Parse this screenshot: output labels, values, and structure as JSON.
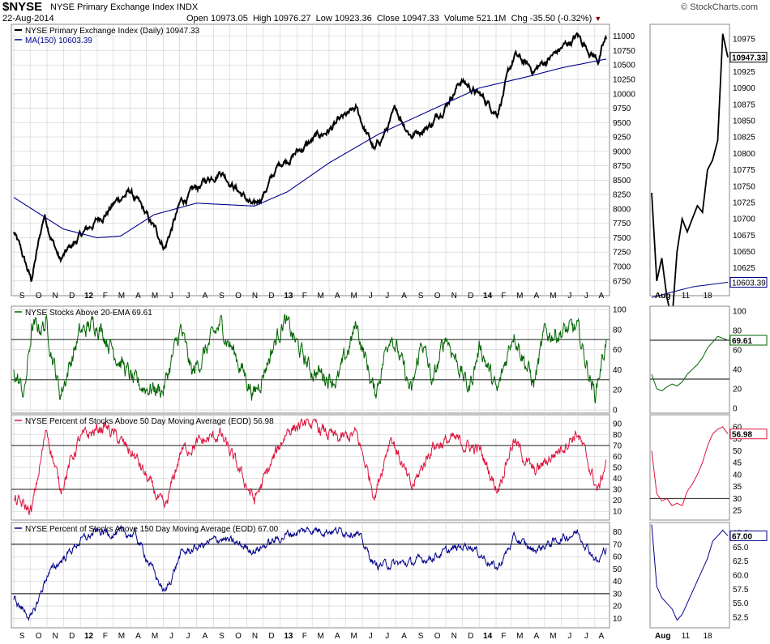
{
  "header": {
    "symbol": "$NYSE",
    "name": "NYSE Primary Exchange Index  INDX",
    "date": "22-Aug-2014",
    "ohlc": "Open 10973.05  High 10976.27  Low 10923.36  Close 10947.33  Volume 521.1M  Chg -35.50 (-0.32%)",
    "chg_arrow": "▼",
    "brand": "© StockCharts.com"
  },
  "colors": {
    "price": "#000000",
    "ma": "#00008b",
    "ema20": "#006400",
    "pct50": "#dc143c",
    "pct150": "#00008b",
    "grid": "#d3d3d3",
    "border": "#888888"
  },
  "x_labels": [
    "S",
    "O",
    "N",
    "D",
    "12",
    "F",
    "M",
    "A",
    "M",
    "J",
    "J",
    "A",
    "S",
    "O",
    "N",
    "D",
    "13",
    "F",
    "M",
    "A",
    "M",
    "J",
    "J",
    "A",
    "S",
    "O",
    "N",
    "D",
    "14",
    "F",
    "M",
    "A",
    "M",
    "J",
    "J",
    "A"
  ],
  "zoom_labels": [
    "Aug",
    "11",
    "18"
  ],
  "chart_data": [
    {
      "type": "line",
      "title": "NYSE Primary Exchange Index (Daily) 10947.33",
      "series": [
        {
          "name": "NYSE Primary Exchange Index (Daily) 10947.33",
          "x": [
            "2011-09-01",
            "2011-10-03",
            "2011-10-27",
            "2011-11-25",
            "2011-12-30",
            "2012-03-15",
            "2012-04-02",
            "2012-06-04",
            "2012-07-03",
            "2012-09-14",
            "2012-11-15",
            "2013-01-02",
            "2013-05-21",
            "2013-06-24",
            "2013-08-02",
            "2013-08-30",
            "2013-10-08",
            "2013-11-29",
            "2014-02-03",
            "2014-03-07",
            "2014-04-11",
            "2014-06-30",
            "2014-08-07",
            "2014-08-22"
          ],
          "values": [
            7600,
            6750,
            7900,
            7100,
            7500,
            8200,
            8300,
            7350,
            8100,
            8700,
            8000,
            8800,
            9700,
            9000,
            9700,
            9300,
            9500,
            10250,
            9700,
            10650,
            10400,
            11000,
            10600,
            10947
          ]
        },
        {
          "name": "MA(150) 10603.39",
          "x": [
            "2011-09-01",
            "2011-12-01",
            "2012-02-01",
            "2012-03-15",
            "2012-05-15",
            "2012-08-01",
            "2012-11-15",
            "2013-01-15",
            "2013-04-01",
            "2013-07-01",
            "2013-10-01",
            "2014-01-01",
            "2014-04-01",
            "2014-06-01",
            "2014-08-22"
          ],
          "values": [
            8200,
            7650,
            7500,
            7530,
            7900,
            8100,
            8050,
            8300,
            8800,
            9300,
            9700,
            10100,
            10300,
            10450,
            10603
          ]
        }
      ],
      "ylim": [
        6550,
        11150
      ],
      "yticks": [
        6750,
        7000,
        7250,
        7500,
        7750,
        8000,
        8250,
        8500,
        8750,
        9000,
        9250,
        9500,
        9750,
        10000,
        10250,
        10500,
        10750,
        11000
      ],
      "zoom": {
        "dates": [
          "2014-08-01",
          "2014-08-04",
          "2014-08-05",
          "2014-08-06",
          "2014-08-07",
          "2014-08-08",
          "2014-08-11",
          "2014-08-12",
          "2014-08-13",
          "2014-08-14",
          "2014-08-15",
          "2014-08-18",
          "2014-08-19",
          "2014-08-20",
          "2014-08-21",
          "2014-08-22"
        ],
        "values": [
          10740,
          10605,
          10640,
          10580,
          10545,
          10650,
          10700,
          10680,
          10700,
          10720,
          10710,
          10775,
          10790,
          10820,
          10983,
          10947
        ],
        "ma_values": [
          10580,
          10582,
          10584,
          10586,
          10588,
          10590,
          10592,
          10594,
          10596,
          10597,
          10598,
          10599,
          10600,
          10601,
          10602,
          10603
        ],
        "ylim": [
          10590,
          10990
        ],
        "yticks": [
          10600,
          10625,
          10650,
          10675,
          10700,
          10725,
          10750,
          10775,
          10800,
          10825,
          10850,
          10875,
          10900,
          10925,
          10950,
          10975
        ],
        "last_label": "10947.33",
        "ma_label": "10603.39"
      }
    },
    {
      "type": "line",
      "title": "NYSE Stocks Above 20-EMA 69.61",
      "series": [
        {
          "name": "NYSE Stocks Above 20-EMA 69.61",
          "x": [
            "2011-09-01",
            "2011-09-20",
            "2011-10-04",
            "2011-10-31",
            "2011-11-25",
            "2011-12-30",
            "2012-01-31",
            "2012-04-10",
            "2012-06-01",
            "2012-07-03",
            "2012-07-24",
            "2012-09-14",
            "2012-11-15",
            "2013-01-08",
            "2013-02-25",
            "2013-04-18",
            "2013-05-21",
            "2013-06-24",
            "2013-07-23",
            "2013-08-30",
            "2013-09-18",
            "2013-10-08",
            "2013-11-01",
            "2013-12-13",
            "2014-01-03",
            "2014-02-03",
            "2014-03-05",
            "2014-04-11",
            "2014-05-01",
            "2014-06-30",
            "2014-08-01",
            "2014-08-22"
          ],
          "values": [
            40,
            15,
            80,
            85,
            15,
            75,
            88,
            25,
            20,
            80,
            35,
            85,
            15,
            90,
            40,
            30,
            85,
            15,
            80,
            15,
            70,
            25,
            75,
            20,
            65,
            15,
            80,
            25,
            75,
            80,
            15,
            70
          ]
        }
      ],
      "ylim": [
        0,
        100
      ],
      "yticks": [
        0,
        20,
        40,
        60,
        80,
        100
      ],
      "hlines": [
        30,
        70
      ],
      "zoom": {
        "values": [
          35,
          20,
          18,
          22,
          25,
          23,
          27,
          35,
          40,
          45,
          52,
          62,
          68,
          74,
          72,
          70
        ],
        "ylim": [
          0,
          100
        ],
        "yticks": [
          0,
          20,
          40,
          60,
          80,
          100
        ],
        "last_label": "69.61"
      }
    },
    {
      "type": "line",
      "title": "NYSE Percent of Stocks Above 50 Day Moving Average (EOD) 56.98",
      "series": [
        {
          "name": "NYSE Percent of Stocks Above 50 Day Moving Average (EOD) 56.98",
          "x": [
            "2011-09-01",
            "2011-10-04",
            "2011-10-31",
            "2011-11-25",
            "2011-12-30",
            "2012-02-15",
            "2012-04-10",
            "2012-06-04",
            "2012-07-03",
            "2012-09-14",
            "2012-11-15",
            "2013-01-15",
            "2013-02-25",
            "2013-04-18",
            "2013-05-21",
            "2013-06-24",
            "2013-07-23",
            "2013-08-30",
            "2013-10-08",
            "2013-11-15",
            "2014-01-03",
            "2014-02-03",
            "2014-03-05",
            "2014-04-11",
            "2014-06-30",
            "2014-08-07",
            "2014-08-22"
          ],
          "values": [
            20,
            10,
            85,
            30,
            75,
            88,
            60,
            10,
            65,
            80,
            20,
            85,
            90,
            75,
            80,
            25,
            80,
            30,
            70,
            75,
            65,
            30,
            75,
            45,
            82,
            28,
            57
          ]
        }
      ],
      "ylim": [
        5,
        95
      ],
      "yticks": [
        10,
        20,
        30,
        40,
        50,
        60,
        70,
        80,
        90
      ],
      "hlines": [
        30,
        70
      ],
      "zoom": {
        "values": [
          50,
          32,
          29,
          30,
          27,
          28,
          27,
          33,
          36,
          40,
          45,
          52,
          57,
          59,
          60,
          57
        ],
        "ylim": [
          23,
          63
        ],
        "yticks": [
          25,
          30,
          35,
          40,
          45,
          50,
          55,
          60
        ],
        "hlines": [
          30
        ],
        "last_label": "56.98"
      }
    },
    {
      "type": "line",
      "title": "NYSE Percent of Stocks Above 150 Day Moving Average (EOD) 67.00",
      "series": [
        {
          "name": "NYSE Percent of Stocks Above 150 Day Moving Average (EOD) 67.00",
          "x": [
            "2011-09-01",
            "2011-10-04",
            "2011-11-01",
            "2011-12-30",
            "2012-01-31",
            "2012-04-10",
            "2012-06-04",
            "2012-07-03",
            "2012-09-14",
            "2012-11-15",
            "2013-01-15",
            "2013-02-25",
            "2013-05-21",
            "2013-06-24",
            "2013-08-30",
            "2013-10-08",
            "2013-12-13",
            "2014-02-03",
            "2014-03-07",
            "2014-04-11",
            "2014-06-30",
            "2014-08-07",
            "2014-08-22"
          ],
          "values": [
            25,
            10,
            45,
            72,
            80,
            78,
            30,
            62,
            75,
            65,
            78,
            82,
            80,
            53,
            55,
            60,
            70,
            50,
            75,
            65,
            80,
            55,
            67
          ]
        }
      ],
      "ylim": [
        5,
        85
      ],
      "yticks": [
        10,
        20,
        30,
        40,
        50,
        60,
        70,
        80
      ],
      "hlines": [
        30,
        70
      ],
      "zoom": {
        "values": [
          69,
          58,
          56,
          55,
          54,
          52,
          53,
          55,
          57,
          59,
          61,
          63,
          66,
          67,
          68,
          67
        ],
        "ylim": [
          51.5,
          68.5
        ],
        "yticks": [
          52.5,
          55.0,
          57.5,
          60.0,
          62.5,
          65.0,
          67.5
        ],
        "last_label": "67.00"
      }
    }
  ]
}
